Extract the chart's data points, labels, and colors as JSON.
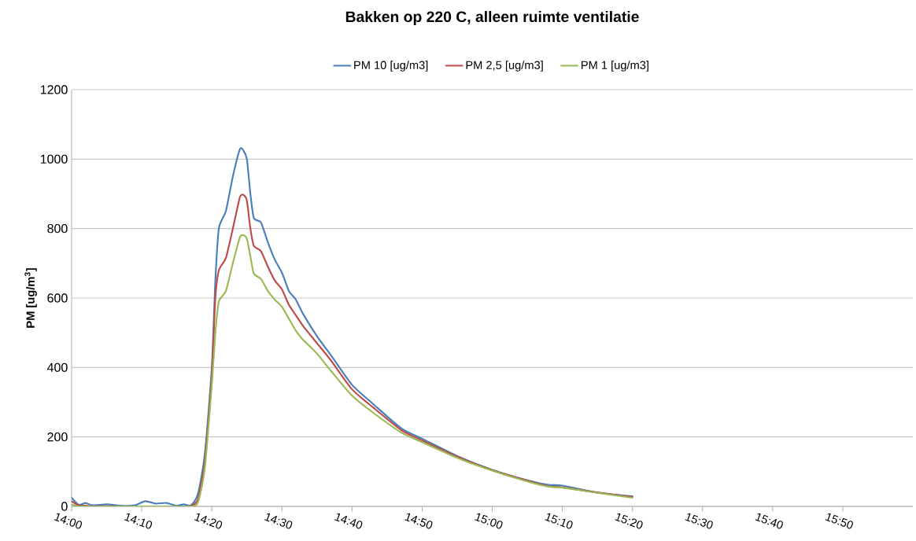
{
  "chart_data": {
    "type": "line",
    "title": "**Bakken op 220 C, alleen ruimte ventilatie**",
    "ylabel": "**PM [ug/m$^{3}$]**",
    "x": [
      14.0,
      14.0167,
      14.0333,
      14.05,
      14.0833,
      14.1167,
      14.15,
      14.175,
      14.2,
      14.225,
      14.25,
      14.2667,
      14.2833,
      14.3,
      14.3167,
      14.3333,
      14.3417,
      14.35,
      14.3667,
      14.3833,
      14.4,
      14.4083,
      14.4167,
      14.425,
      14.4333,
      14.45,
      14.4667,
      14.4833,
      14.5,
      14.5167,
      14.5333,
      14.55,
      14.5833,
      14.6167,
      14.6667,
      14.7167,
      14.7833,
      14.8333,
      14.9167,
      15.0,
      15.0833,
      15.1333,
      15.1667,
      15.25,
      15.3333
    ],
    "xlim": [
      14,
      16
    ],
    "xticks": [
      {
        "value": 14.0,
        "label": "14:00"
      },
      {
        "value": 14.1667,
        "label": "14:10"
      },
      {
        "value": 14.3333,
        "label": "14:20"
      },
      {
        "value": 14.5,
        "label": "14:30"
      },
      {
        "value": 14.6667,
        "label": "14:40"
      },
      {
        "value": 14.8333,
        "label": "14:50"
      },
      {
        "value": 15.0,
        "label": "15:00"
      },
      {
        "value": 15.1667,
        "label": "15:10"
      },
      {
        "value": 15.3333,
        "label": "15:20"
      },
      {
        "value": 15.5,
        "label": "15:30"
      },
      {
        "value": 15.6667,
        "label": "15:40"
      },
      {
        "value": 15.8333,
        "label": "15:50"
      }
    ],
    "ylim": [
      0,
      1200
    ],
    "yticks": [
      0,
      200,
      400,
      600,
      800,
      1000,
      1200
    ],
    "grid": "y",
    "legend": "top",
    "marker": "none",
    "line_style": "solid",
    "series": [
      {
        "name": "PM 10 [ug/m3]",
        "color": "#4a7ebb",
        "values": [
          25,
          5,
          10,
          3,
          6,
          2,
          3,
          15,
          8,
          10,
          2,
          6,
          3,
          35,
          150,
          400,
          650,
          800,
          850,
          950,
          1028,
          1025,
          1000,
          900,
          830,
          818,
          760,
          710,
          673,
          620,
          595,
          555,
          490,
          435,
          350,
          295,
          225,
          195,
          145,
          105,
          75,
          62,
          60,
          40,
          29
        ]
      },
      {
        "name": "PM 2,5 [ug/m3]",
        "color": "#be4b48",
        "values": [
          15,
          3,
          2,
          0,
          1,
          0,
          0,
          null,
          0,
          0,
          0,
          0,
          1,
          20,
          130,
          380,
          600,
          680,
          715,
          800,
          890,
          897,
          880,
          800,
          750,
          735,
          690,
          650,
          625,
          580,
          550,
          520,
          470,
          420,
          337,
          285,
          220,
          190,
          143,
          104,
          74,
          58,
          55,
          40,
          27
        ]
      },
      {
        "name": "PM 1 [ug/m3]",
        "color": "#98b954",
        "values": [
          5,
          0,
          0,
          0,
          0,
          0,
          0,
          0,
          0,
          0,
          0,
          0,
          0,
          10,
          110,
          350,
          500,
          590,
          620,
          700,
          775,
          781,
          770,
          720,
          670,
          655,
          620,
          595,
          575,
          540,
          505,
          480,
          440,
          390,
          319,
          270,
          213,
          185,
          140,
          103,
          72,
          57,
          54,
          39,
          25
        ]
      }
    ]
  }
}
